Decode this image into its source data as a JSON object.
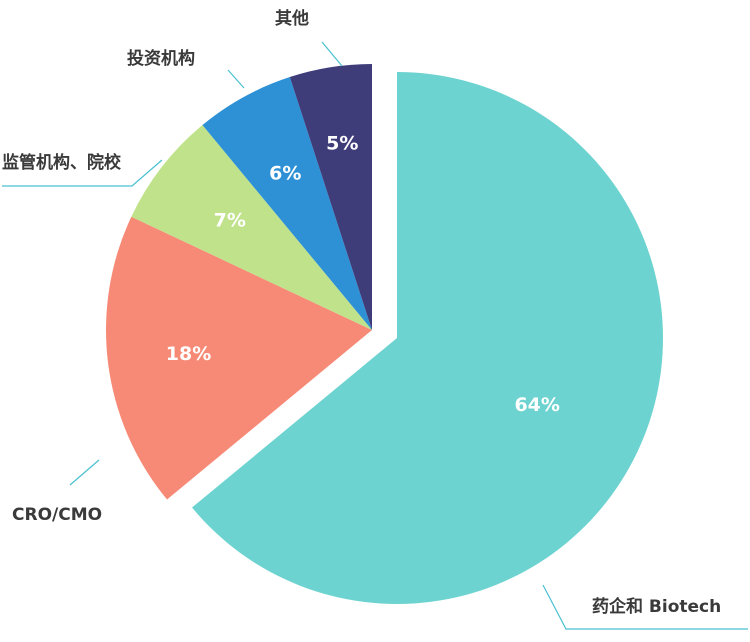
{
  "chart_data": {
    "type": "pie",
    "start_angle_deg": 0,
    "direction": "clockwise",
    "exploded": [
      "药企和 Biotech"
    ],
    "slices": [
      {
        "label": "药企和 Biotech",
        "value": 64,
        "value_label": "64%",
        "color": "#6dd3d0"
      },
      {
        "label": "CRO/CMO",
        "value": 18,
        "value_label": "18%",
        "color": "#f78a76"
      },
      {
        "label": "监管机构、院校",
        "value": 7,
        "value_label": "7%",
        "color": "#bfe28a"
      },
      {
        "label": "投资机构",
        "value": 6,
        "value_label": "6%",
        "color": "#2e91d6"
      },
      {
        "label": "其他",
        "value": 5,
        "value_label": "5%",
        "color": "#3f3c7a"
      }
    ],
    "leader_color": "#49c0d0"
  }
}
